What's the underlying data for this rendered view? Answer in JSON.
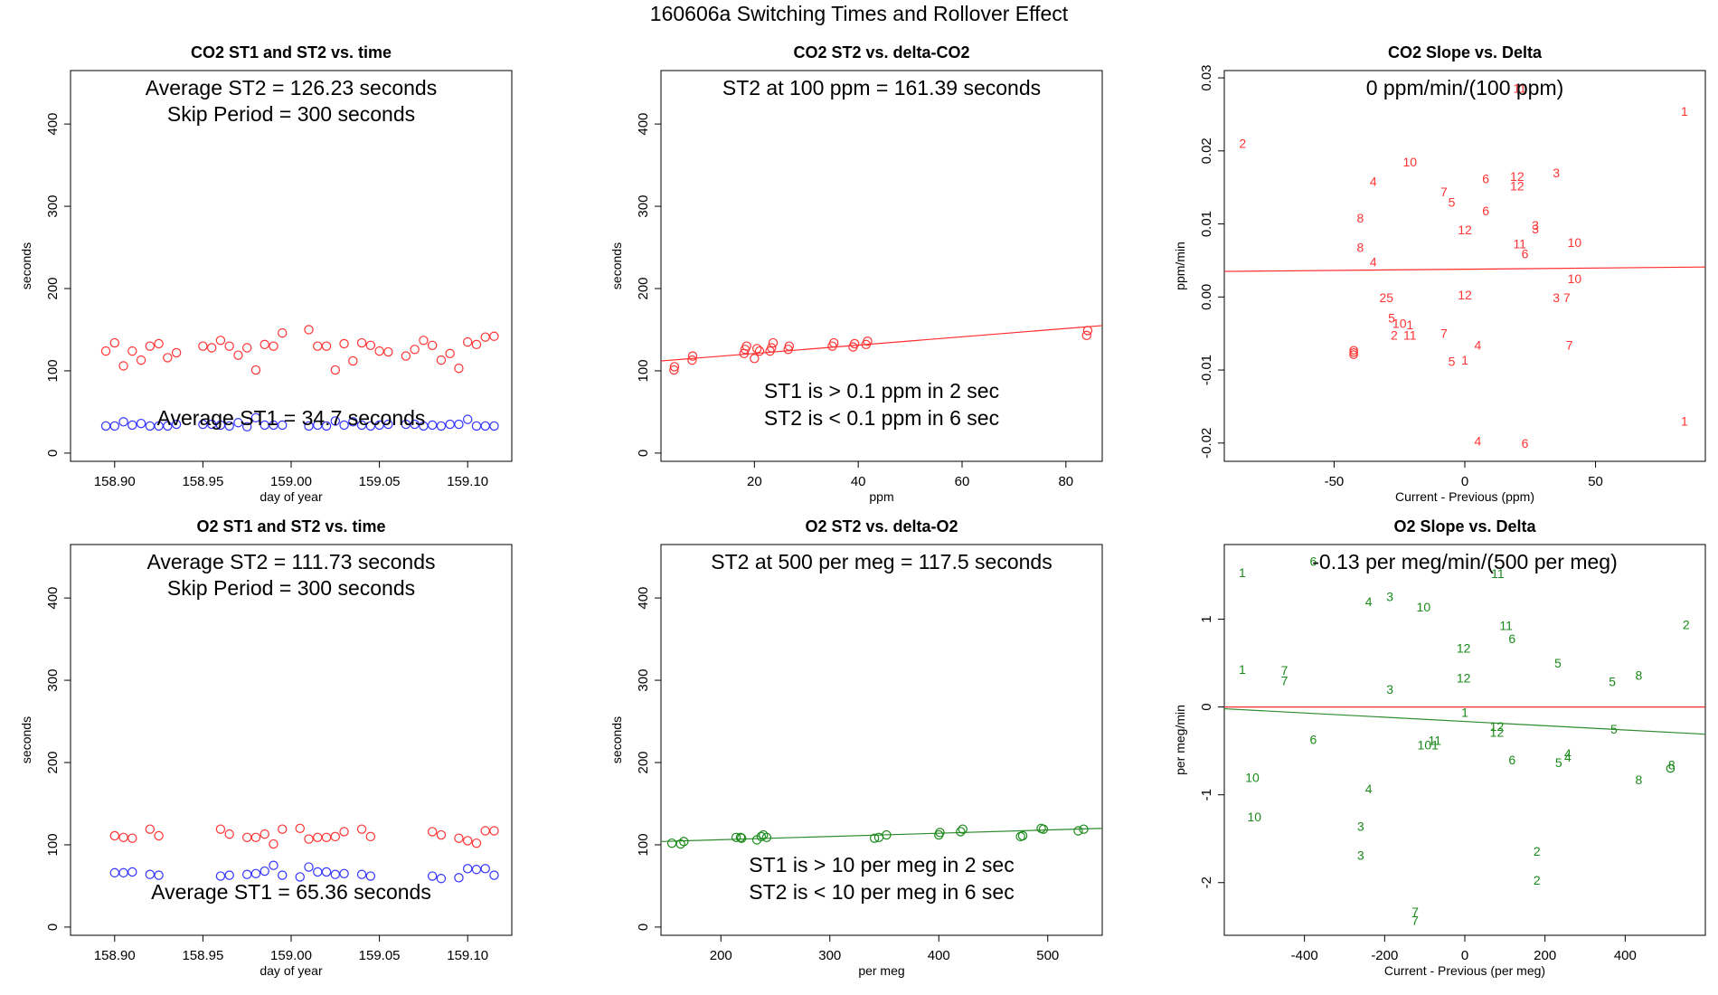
{
  "page_title": "160606a   Switching Times and Rollover Effect",
  "colors": {
    "red": "#ff3333",
    "blue": "#3333ff",
    "green": "#1a8a1a",
    "fit_red": "#ff2a2a",
    "fit_green": "#2e8b2e"
  },
  "chart_data": [
    {
      "id": "co2_time",
      "type": "scatter",
      "title": "CO2 ST1 and ST2 vs. time",
      "xlabel": "day of year",
      "ylabel": "seconds",
      "xlim": [
        158.875,
        159.125
      ],
      "ylim": [
        -10,
        465
      ],
      "xticks": [
        158.9,
        158.95,
        159.0,
        159.05,
        159.1
      ],
      "xtick_labels": [
        "158.90",
        "158.95",
        "159.00",
        "159.05",
        "159.10"
      ],
      "yticks": [
        0,
        100,
        200,
        300,
        400
      ],
      "annotations": [
        "Average ST2 =  126.23  seconds",
        "Skip Period =  300  seconds",
        "Average ST1 =  34.7  seconds"
      ],
      "series": [
        {
          "name": "ST2",
          "color": "red",
          "x": [
            158.895,
            158.9,
            158.905,
            158.91,
            158.915,
            158.92,
            158.925,
            158.93,
            158.935,
            158.95,
            158.955,
            158.96,
            158.965,
            158.97,
            158.975,
            158.98,
            158.985,
            158.99,
            158.995,
            159.01,
            159.015,
            159.02,
            159.025,
            159.03,
            159.035,
            159.04,
            159.045,
            159.05,
            159.055,
            159.065,
            159.07,
            159.075,
            159.08,
            159.085,
            159.09,
            159.095,
            159.1,
            159.105,
            159.11,
            159.115
          ],
          "y": [
            124,
            134,
            106,
            124,
            113,
            130,
            133,
            116,
            122,
            130,
            128,
            137,
            130,
            119,
            128,
            101,
            132,
            130,
            146,
            150,
            130,
            130,
            101,
            133,
            112,
            134,
            131,
            124,
            123,
            118,
            126,
            137,
            131,
            113,
            121,
            103,
            135,
            132,
            141,
            142
          ]
        },
        {
          "name": "ST1",
          "color": "blue",
          "x": [
            158.895,
            158.9,
            158.905,
            158.91,
            158.915,
            158.92,
            158.925,
            158.93,
            158.935,
            158.95,
            158.955,
            158.96,
            158.965,
            158.97,
            158.975,
            158.98,
            158.985,
            158.99,
            158.995,
            159.01,
            159.015,
            159.02,
            159.025,
            159.03,
            159.035,
            159.04,
            159.045,
            159.05,
            159.055,
            159.065,
            159.07,
            159.075,
            159.08,
            159.085,
            159.09,
            159.095,
            159.1,
            159.105,
            159.11,
            159.115
          ],
          "y": [
            33,
            33,
            38,
            34,
            36,
            33,
            33,
            33,
            35,
            35,
            35,
            34,
            33,
            37,
            32,
            43,
            34,
            34,
            34,
            33,
            34,
            33,
            39,
            34,
            38,
            34,
            33,
            34,
            35,
            35,
            35,
            33,
            34,
            33,
            35,
            35,
            41,
            33,
            33,
            33
          ]
        }
      ]
    },
    {
      "id": "co2_delta",
      "type": "scatter",
      "title": "CO2 ST2 vs. delta-CO2",
      "xlabel": "ppm",
      "ylabel": "seconds",
      "xlim": [
        2,
        87
      ],
      "ylim": [
        -10,
        465
      ],
      "xticks": [
        20,
        40,
        60,
        80
      ],
      "yticks": [
        0,
        100,
        200,
        300,
        400
      ],
      "annotations": [
        "ST2 at 100 ppm =  161.39  seconds",
        "ST1 is > 0.1 ppm in 2 sec",
        "ST2 is < 0.1 ppm in 6 sec"
      ],
      "fit_line": {
        "x": [
          2,
          87
        ],
        "y": [
          112,
          155
        ],
        "color": "red"
      },
      "series": [
        {
          "name": "ST2",
          "color": "red",
          "x": [
            4.5,
            4.6,
            8,
            8.1,
            18,
            18.2,
            18.5,
            20,
            20.5,
            21,
            23,
            23.3,
            23.6,
            26.5,
            26.7,
            35,
            35.3,
            39,
            39.3,
            41.5,
            41.8,
            84,
            84.2
          ],
          "y": [
            101,
            105,
            113,
            118,
            121,
            126,
            130,
            115,
            127,
            124,
            124,
            128,
            134,
            126,
            130,
            130,
            134,
            129,
            133,
            132,
            136,
            143,
            149
          ]
        }
      ]
    },
    {
      "id": "co2_slope",
      "type": "scatter",
      "title": "CO2 Slope vs. Delta",
      "xlabel": "Current - Previous (ppm)",
      "ylabel": "ppm/min",
      "xlim": [
        -92,
        92
      ],
      "ylim": [
        -0.0225,
        0.031
      ],
      "xticks": [
        -50,
        0,
        50
      ],
      "yticks": [
        -0.02,
        -0.01,
        0.0,
        0.01,
        0.02,
        0.03
      ],
      "ytick_labels": [
        "-0.02",
        "-0.01",
        "0.00",
        "0.01",
        "0.02",
        "0.03"
      ],
      "annotations": [
        "0  ppm/min/(100 ppm)"
      ],
      "fit_line": {
        "x": [
          -92,
          92
        ],
        "y": [
          0.0035,
          0.0041
        ],
        "color": "red"
      },
      "points": [
        {
          "label": "1",
          "x": 84,
          "y": 0.0254
        },
        {
          "label": "11",
          "x": 21,
          "y": 0.0286
        },
        {
          "label": "2",
          "x": -85,
          "y": 0.021
        },
        {
          "label": "10",
          "x": -21,
          "y": 0.0185
        },
        {
          "label": "3",
          "x": 35,
          "y": 0.017
        },
        {
          "label": "12",
          "x": 20,
          "y": 0.0165
        },
        {
          "label": "6",
          "x": 8,
          "y": 0.0162
        },
        {
          "label": "4",
          "x": -35,
          "y": 0.0158
        },
        {
          "label": "12",
          "x": 20,
          "y": 0.0152
        },
        {
          "label": "7",
          "x": -8,
          "y": 0.0144
        },
        {
          "label": "5",
          "x": -5,
          "y": 0.013
        },
        {
          "label": "6",
          "x": 8,
          "y": 0.0118
        },
        {
          "label": "8",
          "x": -40,
          "y": 0.0108
        },
        {
          "label": "3",
          "x": 27,
          "y": 0.0098
        },
        {
          "label": "3",
          "x": 27,
          "y": 0.0093
        },
        {
          "label": "12",
          "x": 0,
          "y": 0.0092
        },
        {
          "label": "10",
          "x": 42,
          "y": 0.0075
        },
        {
          "label": "11",
          "x": 21,
          "y": 0.0073
        },
        {
          "label": "8",
          "x": -40,
          "y": 0.0068
        },
        {
          "label": "6",
          "x": 23,
          "y": 0.0059
        },
        {
          "label": "4",
          "x": -35,
          "y": 0.0048
        },
        {
          "label": "10",
          "x": 42,
          "y": 0.0025
        },
        {
          "label": "12",
          "x": 0,
          "y": 0.0003
        },
        {
          "label": "3",
          "x": 35,
          "y": -0.0001
        },
        {
          "label": "7",
          "x": 39,
          "y": -0.0001
        },
        {
          "label": "25",
          "x": -30,
          "y": -0.0001
        },
        {
          "label": "5",
          "x": -28,
          "y": -0.0029
        },
        {
          "label": "10",
          "x": -25,
          "y": -0.0036
        },
        {
          "label": "1",
          "x": -21,
          "y": -0.0038
        },
        {
          "label": "2",
          "x": -27,
          "y": -0.0052
        },
        {
          "label": "11",
          "x": -21,
          "y": -0.0052
        },
        {
          "label": "7",
          "x": -8,
          "y": -0.005
        },
        {
          "label": "4",
          "x": 5,
          "y": -0.0066
        },
        {
          "label": "7",
          "x": 40,
          "y": -0.0066
        },
        {
          "label": "5",
          "x": -5,
          "y": -0.0088
        },
        {
          "label": "1",
          "x": 0,
          "y": -0.0086
        },
        {
          "label": "1",
          "x": 84,
          "y": -0.017
        },
        {
          "label": "4",
          "x": 5,
          "y": -0.0197
        },
        {
          "label": "6",
          "x": 23,
          "y": -0.02
        }
      ],
      "circles": [
        {
          "x": -42.5,
          "y": -0.0073
        },
        {
          "x": -42.5,
          "y": -0.0076
        },
        {
          "x": -42.5,
          "y": -0.0079
        }
      ]
    },
    {
      "id": "o2_time",
      "type": "scatter",
      "title": "O2 ST1 and ST2 vs. time",
      "xlabel": "day of year",
      "ylabel": "seconds",
      "xlim": [
        158.875,
        159.125
      ],
      "ylim": [
        -10,
        465
      ],
      "xticks": [
        158.9,
        158.95,
        159.0,
        159.05,
        159.1
      ],
      "xtick_labels": [
        "158.90",
        "158.95",
        "159.00",
        "159.05",
        "159.10"
      ],
      "yticks": [
        0,
        100,
        200,
        300,
        400
      ],
      "annotations": [
        "Average ST2 =  111.73  seconds",
        "Skip Period =  300  seconds",
        "Average ST1 =  65.36  seconds"
      ],
      "series": [
        {
          "name": "ST2",
          "color": "red",
          "x": [
            158.9,
            158.905,
            158.91,
            158.92,
            158.925,
            158.96,
            158.965,
            158.975,
            158.98,
            158.985,
            158.99,
            158.995,
            159.005,
            159.01,
            159.015,
            159.02,
            159.025,
            159.03,
            159.04,
            159.045,
            159.08,
            159.085,
            159.095,
            159.1,
            159.105,
            159.11,
            159.115
          ],
          "y": [
            111,
            109,
            108,
            119,
            111,
            119,
            113,
            109,
            109,
            113,
            101,
            119,
            120,
            107,
            109,
            109,
            110,
            116,
            119,
            110,
            116,
            112,
            108,
            105,
            102,
            117,
            117
          ]
        },
        {
          "name": "ST1",
          "color": "blue",
          "x": [
            158.9,
            158.905,
            158.91,
            158.92,
            158.925,
            158.96,
            158.965,
            158.975,
            158.98,
            158.985,
            158.99,
            158.995,
            159.005,
            159.01,
            159.015,
            159.02,
            159.025,
            159.03,
            159.04,
            159.045,
            159.08,
            159.085,
            159.095,
            159.1,
            159.105,
            159.11,
            159.115
          ],
          "y": [
            66,
            66,
            67,
            64,
            63,
            62,
            63,
            64,
            65,
            68,
            75,
            63,
            61,
            73,
            67,
            67,
            64,
            65,
            64,
            62,
            62,
            59,
            60,
            71,
            70,
            71,
            63
          ]
        }
      ]
    },
    {
      "id": "o2_delta",
      "type": "scatter",
      "title": "O2 ST2 vs. delta-O2",
      "xlabel": "per meg",
      "ylabel": "seconds",
      "xlim": [
        145,
        550
      ],
      "ylim": [
        -10,
        465
      ],
      "xticks": [
        200,
        300,
        400,
        500
      ],
      "yticks": [
        0,
        100,
        200,
        300,
        400
      ],
      "annotations": [
        "ST2 at 500 per meg =  117.5  seconds",
        "ST1 is > 10 per meg in 2 sec",
        "ST2 is < 10 per meg in 6 sec"
      ],
      "fit_line": {
        "x": [
          145,
          550
        ],
        "y": [
          104,
          120
        ],
        "color": "green"
      },
      "series": [
        {
          "name": "ST2",
          "color": "green",
          "x": [
            155,
            163,
            166,
            214,
            218,
            219,
            233,
            237,
            239,
            242,
            341,
            345,
            352,
            400,
            401,
            420,
            422,
            475,
            477,
            494,
            496,
            528,
            533
          ],
          "y": [
            102,
            101,
            104,
            109,
            109,
            108,
            106,
            110,
            112,
            109,
            108,
            109,
            112,
            112,
            115,
            116,
            119,
            110,
            111,
            120,
            119,
            117,
            119
          ]
        }
      ]
    },
    {
      "id": "o2_slope",
      "type": "scatter",
      "title": "O2 Slope vs. Delta",
      "xlabel": "Current - Previous (per meg)",
      "ylabel": "per meg/min",
      "xlim": [
        -600,
        600
      ],
      "ylim": [
        -2.6,
        1.85
      ],
      "xticks": [
        -400,
        -200,
        0,
        200,
        400
      ],
      "yticks": [
        -2,
        -1,
        0,
        1
      ],
      "annotations": [
        "-0.13  per meg/min/(500 per meg)"
      ],
      "fit_line": {
        "x": [
          -600,
          600
        ],
        "y": [
          0.0,
          0.0
        ],
        "color": "red"
      },
      "fit_line2": {
        "x": [
          -600,
          600
        ],
        "y": [
          -0.02,
          -0.31
        ],
        "color": "green"
      },
      "points": [
        {
          "label": "1",
          "x": -555,
          "y": 1.53
        },
        {
          "label": "6",
          "x": -378,
          "y": 1.66
        },
        {
          "label": "3",
          "x": -187,
          "y": 1.26
        },
        {
          "label": "4",
          "x": -240,
          "y": 1.2
        },
        {
          "label": "10",
          "x": -103,
          "y": 1.14
        },
        {
          "label": "11",
          "x": 82,
          "y": 1.52
        },
        {
          "label": "11",
          "x": 103,
          "y": 0.93
        },
        {
          "label": "6",
          "x": 118,
          "y": 0.78
        },
        {
          "label": "2",
          "x": 552,
          "y": 0.94
        },
        {
          "label": "12",
          "x": -3,
          "y": 0.67
        },
        {
          "label": "5",
          "x": 232,
          "y": 0.5
        },
        {
          "label": "8",
          "x": 434,
          "y": 0.36
        },
        {
          "label": "5",
          "x": 368,
          "y": 0.29
        },
        {
          "label": "1",
          "x": -555,
          "y": 0.43
        },
        {
          "label": "7",
          "x": -450,
          "y": 0.42
        },
        {
          "label": "7",
          "x": -450,
          "y": 0.3
        },
        {
          "label": "12",
          "x": -3,
          "y": 0.33
        },
        {
          "label": "3",
          "x": -187,
          "y": 0.2
        },
        {
          "label": "1",
          "x": 0,
          "y": -0.06
        },
        {
          "label": "12",
          "x": 80,
          "y": -0.22
        },
        {
          "label": "12",
          "x": 80,
          "y": -0.29
        },
        {
          "label": "6",
          "x": -378,
          "y": -0.37
        },
        {
          "label": "11",
          "x": -75,
          "y": -0.38
        },
        {
          "label": "101",
          "x": -92,
          "y": -0.43
        },
        {
          "label": "5",
          "x": 372,
          "y": -0.25
        },
        {
          "label": "4",
          "x": 257,
          "y": -0.53
        },
        {
          "label": "4",
          "x": 257,
          "y": -0.57
        },
        {
          "label": "6",
          "x": 118,
          "y": -0.6
        },
        {
          "label": "5",
          "x": 234,
          "y": -0.63
        },
        {
          "label": "8",
          "x": 516,
          "y": -0.66
        },
        {
          "label": "8",
          "x": 434,
          "y": -0.83
        },
        {
          "label": "4",
          "x": -240,
          "y": -0.93
        },
        {
          "label": "10",
          "x": -530,
          "y": -0.8
        },
        {
          "label": "10",
          "x": -525,
          "y": -1.25
        },
        {
          "label": "3",
          "x": -260,
          "y": -1.36
        },
        {
          "label": "3",
          "x": -260,
          "y": -1.69
        },
        {
          "label": "2",
          "x": 180,
          "y": -1.64
        },
        {
          "label": "2",
          "x": 180,
          "y": -1.97
        },
        {
          "label": "7",
          "x": -124,
          "y": -2.33
        },
        {
          "label": "7",
          "x": -124,
          "y": -2.43
        }
      ],
      "circles": [
        {
          "x": 513,
          "y": -0.7
        }
      ]
    }
  ]
}
